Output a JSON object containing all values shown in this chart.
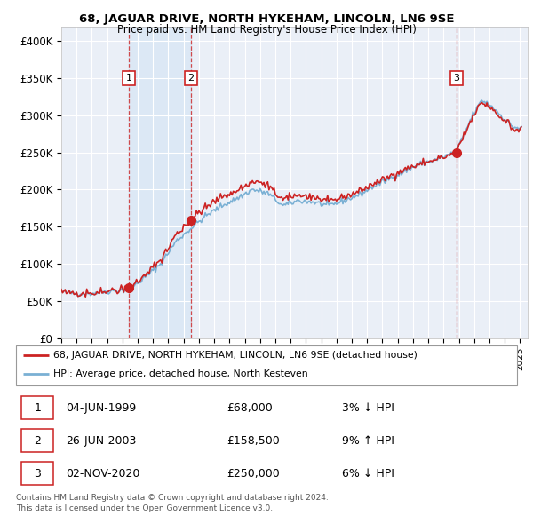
{
  "title": "68, JAGUAR DRIVE, NORTH HYKEHAM, LINCOLN, LN6 9SE",
  "subtitle": "Price paid vs. HM Land Registry's House Price Index (HPI)",
  "ylim": [
    0,
    420000
  ],
  "xlim_start": 1995.0,
  "xlim_end": 2025.5,
  "yticks": [
    0,
    50000,
    100000,
    150000,
    200000,
    250000,
    300000,
    350000,
    400000
  ],
  "ytick_labels": [
    "£0",
    "£50K",
    "£100K",
    "£150K",
    "£200K",
    "£250K",
    "£300K",
    "£350K",
    "£400K"
  ],
  "sales": [
    {
      "num": 1,
      "year": 1999.42,
      "price": 68000,
      "date": "04-JUN-1999",
      "pct": "3%",
      "dir": "↓"
    },
    {
      "num": 2,
      "year": 2003.49,
      "price": 158500,
      "date": "26-JUN-2003",
      "pct": "9%",
      "dir": "↑"
    },
    {
      "num": 3,
      "year": 2020.84,
      "price": 250000,
      "date": "02-NOV-2020",
      "pct": "6%",
      "dir": "↓"
    }
  ],
  "legend_line1": "68, JAGUAR DRIVE, NORTH HYKEHAM, LINCOLN, LN6 9SE (detached house)",
  "legend_line2": "HPI: Average price, detached house, North Kesteven",
  "footer1": "Contains HM Land Registry data © Crown copyright and database right 2024.",
  "footer2": "This data is licensed under the Open Government Licence v3.0.",
  "table_rows": [
    [
      "1",
      "04-JUN-1999",
      "£68,000",
      "3% ↓ HPI"
    ],
    [
      "2",
      "26-JUN-2003",
      "£158,500",
      "9% ↑ HPI"
    ],
    [
      "3",
      "02-NOV-2020",
      "£250,000",
      "6% ↓ HPI"
    ]
  ],
  "red_color": "#cc2222",
  "blue_color": "#7ab0d4",
  "shade_color": "#dce8f5",
  "background_color": "#ffffff",
  "plot_bg_color": "#eaeff7"
}
